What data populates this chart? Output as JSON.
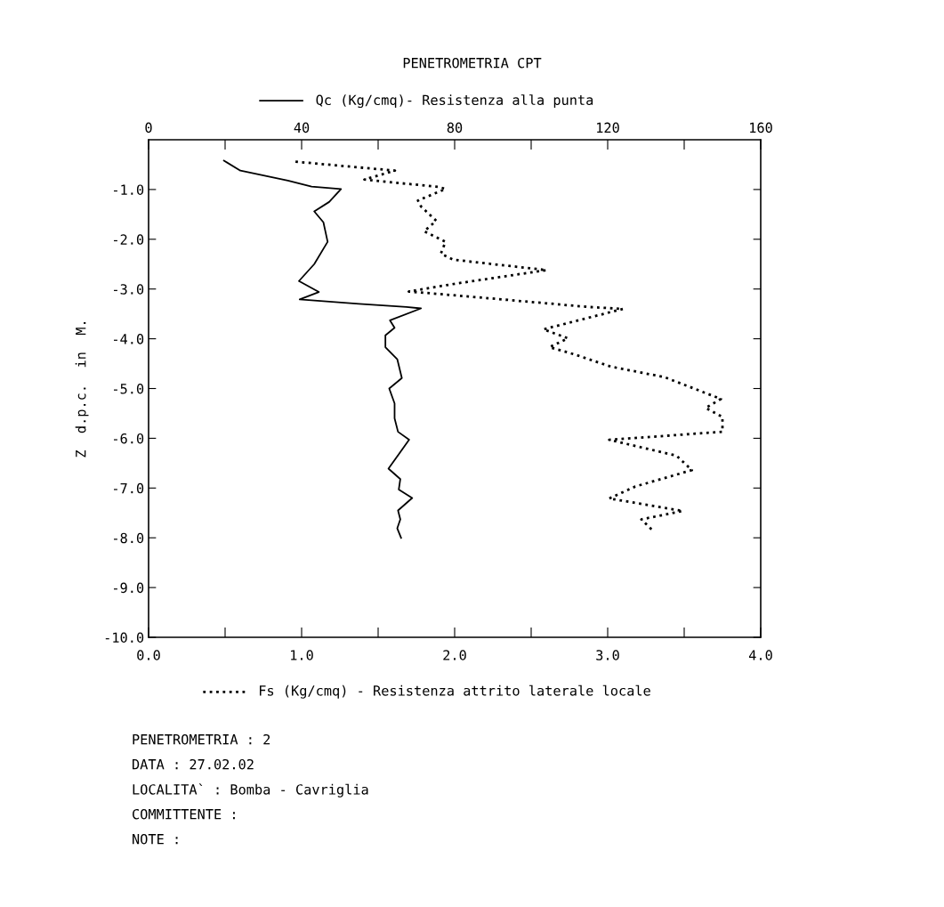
{
  "chart_data": {
    "type": "line",
    "title": "PENETROMETRIA CPT",
    "ylabel": "Z  d.p.c.  in  M.",
    "xlim": [
      0,
      4
    ],
    "xticks": [
      {
        "value": 0,
        "label": "0.0"
      },
      {
        "value": 0.5,
        "label": null
      },
      {
        "value": 1,
        "label": "1.0"
      },
      {
        "value": 1.5,
        "label": null
      },
      {
        "value": 2,
        "label": "2.0"
      },
      {
        "value": 2.5,
        "label": null
      },
      {
        "value": 3,
        "label": "3.0"
      },
      {
        "value": 3.5,
        "label": null
      },
      {
        "value": 4,
        "label": "4.0"
      }
    ],
    "x2lim": [
      0,
      160
    ],
    "x2ticks": [
      0,
      {
        "value": 20,
        "label": null
      },
      40,
      {
        "value": 60,
        "label": null
      },
      80,
      {
        "value": 100,
        "label": null
      },
      120,
      {
        "value": 140,
        "label": null
      },
      160
    ],
    "ylim": [
      -10,
      0
    ],
    "yticks": [
      {
        "value": -1,
        "label": "-1.0"
      },
      {
        "value": -2,
        "label": "-2.0"
      },
      {
        "value": -3,
        "label": "-3.0"
      },
      {
        "value": -4,
        "label": "-4.0"
      },
      {
        "value": -5,
        "label": "-5.0"
      },
      {
        "value": -6,
        "label": "-6.0"
      },
      {
        "value": -7,
        "label": "-7.0"
      },
      {
        "value": -8,
        "label": "-8.0"
      },
      {
        "value": -9,
        "label": "-9.0"
      },
      {
        "value": -10,
        "label": "-10.0"
      }
    ],
    "x2label": "Qc (Kg/cmq)- Resistenza alla punta",
    "xlabel": "Fs (Kg/cmq) - Resistenza attrito laterale locale",
    "orientation": "horizontal",
    "grid": false,
    "marker": "none",
    "series": [
      {
        "color": "#000000",
        "axis": "x2",
        "line_style": "solid",
        "x": [
          -0.42,
          -0.62,
          -0.82,
          -0.94,
          -0.99,
          -1.25,
          -1.44,
          -1.66,
          -2.05,
          -2.5,
          -2.84,
          -3.06,
          -3.21,
          -3.3,
          -3.36,
          -3.39,
          -3.63,
          -3.78,
          -3.93,
          -4.17,
          -4.41,
          -4.79,
          -5.0,
          -5.3,
          -5.6,
          -5.87,
          -6.03,
          -6.61,
          -6.82,
          -7.03,
          -7.2,
          -7.45,
          -7.63,
          -7.81,
          -8.0
        ],
        "values": [
          19.7,
          24.0,
          36.4,
          42.6,
          50.3,
          47.2,
          43.3,
          45.7,
          46.8,
          43.3,
          39.3,
          44.5,
          39.5,
          55.0,
          67.4,
          71.2,
          63.1,
          64.3,
          61.9,
          61.9,
          65.0,
          66.2,
          62.9,
          64.3,
          64.3,
          65.2,
          68.1,
          62.7,
          65.8,
          65.4,
          68.9,
          65.2,
          65.8,
          65.0,
          66.0
        ]
      },
      {
        "color": "#000000",
        "line_style": "dotted",
        "x": [
          -0.44,
          -0.53,
          -0.62,
          -0.8,
          -0.95,
          -0.99,
          -1.22,
          -1.34,
          -1.63,
          -1.84,
          -2.05,
          -2.29,
          -2.41,
          -2.62,
          -2.89,
          -3.05,
          -3.15,
          -3.36,
          -3.4,
          -3.81,
          -3.99,
          -4.17,
          -4.32,
          -4.56,
          -4.77,
          -5.21,
          -5.39,
          -5.57,
          -5.87,
          -6.03,
          -6.35,
          -6.64,
          -6.97,
          -7.21,
          -7.46,
          -7.63,
          -7.84
        ],
        "values": [
          0.96,
          1.28,
          1.61,
          1.41,
          1.9,
          1.94,
          1.76,
          1.78,
          1.88,
          1.8,
          1.94,
          1.91,
          1.99,
          2.6,
          2.01,
          1.7,
          2.09,
          2.87,
          3.1,
          2.58,
          2.74,
          2.62,
          2.79,
          3.02,
          3.37,
          3.74,
          3.64,
          3.75,
          3.75,
          3.01,
          3.45,
          3.55,
          3.18,
          3.01,
          3.49,
          3.22,
          3.29
        ]
      }
    ],
    "annotations": [
      "PENETROMETRIA : 2",
      "DATA : 27.02.02",
      "LOCALITA` : Bomba - Cavriglia",
      "COMMITTENTE :",
      "NOTE :"
    ]
  }
}
